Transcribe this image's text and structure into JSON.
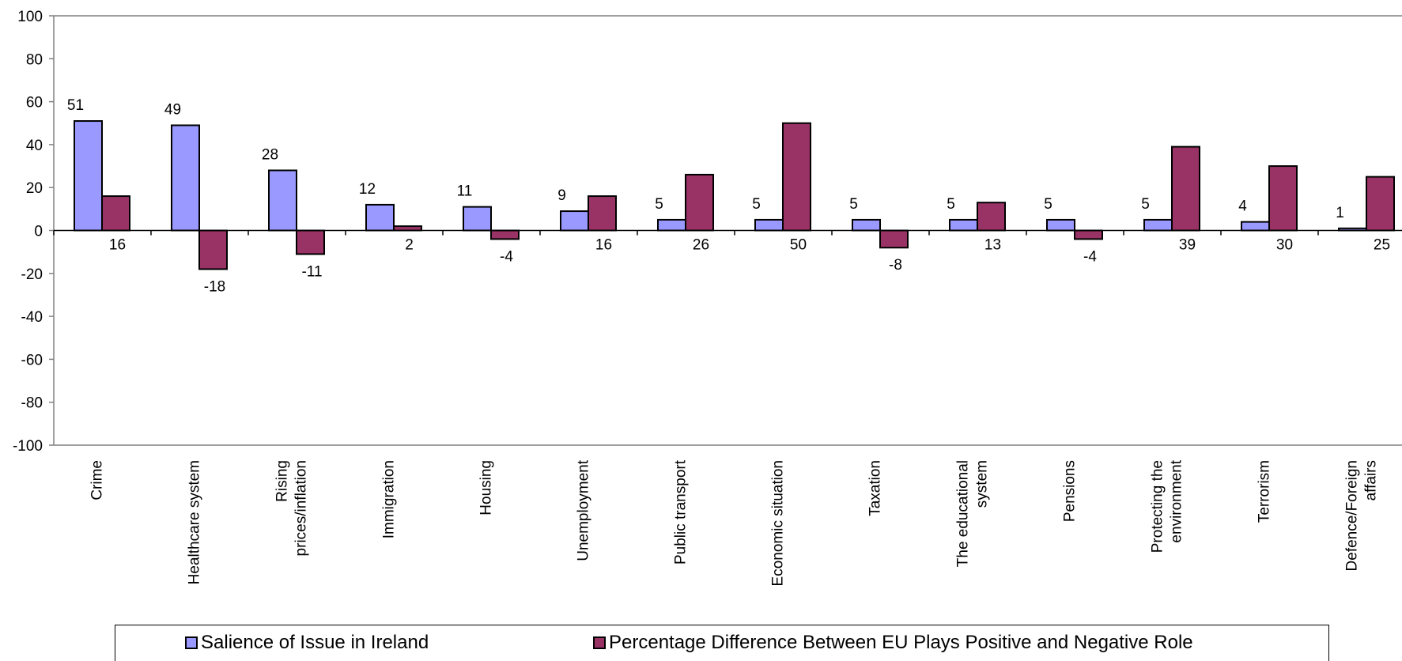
{
  "chart_data": {
    "type": "bar",
    "categories": [
      "Crime",
      "Healthcare system",
      "Rising prices/inflation",
      "Immigration",
      "Housing",
      "Unemployment",
      "Public transport",
      "Economic situation",
      "Taxation",
      "The educational system",
      "Pensions",
      "Protecting the environment",
      "Terrorism",
      "Defence/Foreign affairs"
    ],
    "category_lines": [
      [
        "Crime"
      ],
      [
        "Healthcare system"
      ],
      [
        "Rising",
        "prices/inflation"
      ],
      [
        "Immigration"
      ],
      [
        "Housing"
      ],
      [
        "Unemployment"
      ],
      [
        "Public transport"
      ],
      [
        "Economic situation"
      ],
      [
        "Taxation"
      ],
      [
        "The educational",
        "system"
      ],
      [
        "Pensions"
      ],
      [
        "Protecting the",
        "environment"
      ],
      [
        "Terrorism"
      ],
      [
        "Defence/Foreign",
        "affairs"
      ]
    ],
    "series": [
      {
        "name": "Salience of Issue in Ireland",
        "color": "#9999ff",
        "values": [
          51,
          49,
          28,
          12,
          11,
          9,
          5,
          5,
          5,
          5,
          5,
          5,
          4,
          1
        ]
      },
      {
        "name": "Percentage Difference Between EU Plays Positive and Negative Role",
        "color": "#993366",
        "values": [
          16,
          -18,
          -11,
          2,
          -4,
          16,
          26,
          50,
          -8,
          13,
          -4,
          39,
          30,
          25
        ]
      }
    ],
    "ylim": [
      -100,
      100
    ],
    "yticks": [
      "100",
      "80",
      "60",
      "40",
      "20",
      "0",
      "-20",
      "-40",
      "-60",
      "-80",
      "-100"
    ],
    "grid": false,
    "legend_position": "bottom"
  }
}
